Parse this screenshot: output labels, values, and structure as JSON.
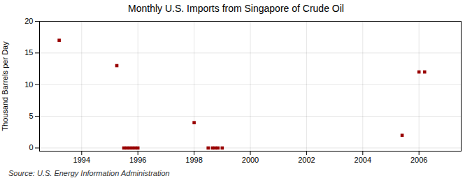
{
  "chart_data": {
    "type": "scatter",
    "title": "Monthly U.S. Imports from Singapore of Crude Oil",
    "ylabel": "Thousand Barrels per Day",
    "annotations": [
      "Source: U.S. Energy Information Administration"
    ],
    "x": [
      1993.2,
      1995.25,
      1995.5,
      1995.6,
      1995.7,
      1995.8,
      1995.9,
      1996.0,
      1998.0,
      1998.5,
      1998.65,
      1998.75,
      1998.85,
      1999.0,
      2005.4,
      2006.0,
      2006.2
    ],
    "values": [
      17,
      13,
      0,
      0,
      0,
      0,
      0,
      0,
      4,
      0,
      0,
      0,
      0,
      0,
      2,
      12,
      12
    ],
    "color": "#990000",
    "marker": "square",
    "xlim": [
      1992.5,
      2007.5
    ],
    "xticks": [
      1994,
      1996,
      1998,
      2000,
      2002,
      2004,
      2006
    ],
    "ylim": [
      -0.5,
      20
    ],
    "yticks": [
      0,
      5,
      10,
      15,
      20
    ],
    "grid": true
  }
}
